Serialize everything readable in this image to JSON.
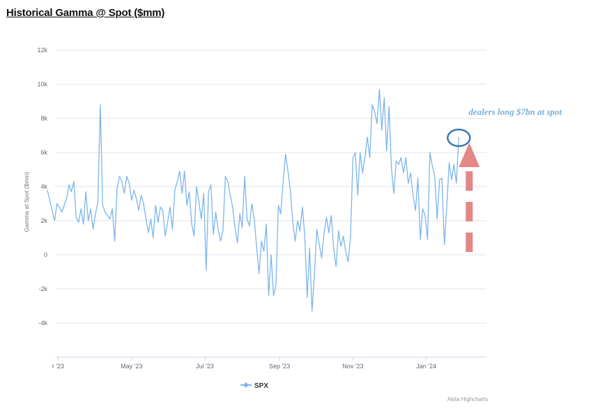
{
  "title": "Historical Gamma @ Spot ($mm)",
  "chart_data": {
    "type": "line",
    "title": "Historical Gamma @ Spot ($mm)",
    "ylabel": "Gamma at Spot ($mm)",
    "xlabel": "",
    "ylim": [
      -4000,
      12000
    ],
    "yticks": [
      {
        "value": 12000,
        "label": "12k"
      },
      {
        "value": 10000,
        "label": "10k"
      },
      {
        "value": 8000,
        "label": "8k"
      },
      {
        "value": 6000,
        "label": "6k"
      },
      {
        "value": 4000,
        "label": "4k"
      },
      {
        "value": 2000,
        "label": "2k"
      },
      {
        "value": 0,
        "label": "0"
      },
      {
        "value": -2000,
        "label": "-2k"
      },
      {
        "value": -4000,
        "label": "-4k"
      }
    ],
    "xlim": [
      "2023-02-27",
      "2024-02-20"
    ],
    "xticks": [
      {
        "date": "2023-03-01",
        "label": "r '23"
      },
      {
        "date": "2023-05-01",
        "label": "May '23"
      },
      {
        "date": "2023-07-01",
        "label": "Jul '23"
      },
      {
        "date": "2023-09-01",
        "label": "Sep '23"
      },
      {
        "date": "2023-11-01",
        "label": "Nov '23"
      },
      {
        "date": "2024-01-01",
        "label": "Jan '24"
      }
    ],
    "grid": true,
    "legend_position": "bottom-center",
    "series": [
      {
        "name": "SPX",
        "color": "#7cb5ec",
        "points": [
          [
            "2023-02-20",
            3800
          ],
          [
            "2023-02-22",
            3200
          ],
          [
            "2023-02-24",
            2600
          ],
          [
            "2023-02-26",
            2000
          ],
          [
            "2023-02-28",
            3000
          ],
          [
            "2023-03-02",
            2800
          ],
          [
            "2023-03-04",
            2500
          ],
          [
            "2023-03-06",
            2900
          ],
          [
            "2023-03-08",
            3300
          ],
          [
            "2023-03-10",
            4100
          ],
          [
            "2023-03-12",
            3700
          ],
          [
            "2023-03-14",
            4300
          ],
          [
            "2023-03-16",
            2200
          ],
          [
            "2023-03-18",
            1900
          ],
          [
            "2023-03-20",
            2700
          ],
          [
            "2023-03-22",
            1800
          ],
          [
            "2023-03-24",
            3700
          ],
          [
            "2023-03-26",
            2000
          ],
          [
            "2023-03-28",
            2700
          ],
          [
            "2023-03-30",
            1500
          ],
          [
            "2023-04-01",
            2400
          ],
          [
            "2023-04-03",
            3100
          ],
          [
            "2023-04-05",
            8800
          ],
          [
            "2023-04-07",
            2900
          ],
          [
            "2023-04-09",
            2500
          ],
          [
            "2023-04-11",
            2300
          ],
          [
            "2023-04-13",
            2100
          ],
          [
            "2023-04-15",
            2700
          ],
          [
            "2023-04-17",
            800
          ],
          [
            "2023-04-19",
            3900
          ],
          [
            "2023-04-21",
            4600
          ],
          [
            "2023-04-23",
            4300
          ],
          [
            "2023-04-25",
            3600
          ],
          [
            "2023-04-27",
            4600
          ],
          [
            "2023-04-29",
            4200
          ],
          [
            "2023-05-01",
            3200
          ],
          [
            "2023-05-03",
            3800
          ],
          [
            "2023-05-05",
            3300
          ],
          [
            "2023-05-07",
            2600
          ],
          [
            "2023-05-09",
            3500
          ],
          [
            "2023-05-11",
            3000
          ],
          [
            "2023-05-13",
            2100
          ],
          [
            "2023-05-15",
            1300
          ],
          [
            "2023-05-17",
            2100
          ],
          [
            "2023-05-19",
            1000
          ],
          [
            "2023-05-21",
            2900
          ],
          [
            "2023-05-23",
            1900
          ],
          [
            "2023-05-25",
            2800
          ],
          [
            "2023-05-27",
            2600
          ],
          [
            "2023-05-29",
            1100
          ],
          [
            "2023-05-31",
            1900
          ],
          [
            "2023-06-02",
            2800
          ],
          [
            "2023-06-04",
            1500
          ],
          [
            "2023-06-06",
            3800
          ],
          [
            "2023-06-08",
            4300
          ],
          [
            "2023-06-10",
            4900
          ],
          [
            "2023-06-12",
            3600
          ],
          [
            "2023-06-14",
            4900
          ],
          [
            "2023-06-16",
            2900
          ],
          [
            "2023-06-18",
            3700
          ],
          [
            "2023-06-20",
            1800
          ],
          [
            "2023-06-22",
            1100
          ],
          [
            "2023-06-24",
            4000
          ],
          [
            "2023-06-26",
            3100
          ],
          [
            "2023-06-28",
            2100
          ],
          [
            "2023-06-30",
            3600
          ],
          [
            "2023-07-02",
            -900
          ],
          [
            "2023-07-04",
            3700
          ],
          [
            "2023-07-06",
            4100
          ],
          [
            "2023-07-08",
            1200
          ],
          [
            "2023-07-10",
            2500
          ],
          [
            "2023-07-12",
            1500
          ],
          [
            "2023-07-14",
            800
          ],
          [
            "2023-07-16",
            1400
          ],
          [
            "2023-07-18",
            4600
          ],
          [
            "2023-07-20",
            4300
          ],
          [
            "2023-07-22",
            3500
          ],
          [
            "2023-07-24",
            2800
          ],
          [
            "2023-07-26",
            1600
          ],
          [
            "2023-07-28",
            700
          ],
          [
            "2023-07-30",
            2400
          ],
          [
            "2023-08-01",
            1600
          ],
          [
            "2023-08-03",
            4600
          ],
          [
            "2023-08-05",
            2100
          ],
          [
            "2023-08-07",
            1700
          ],
          [
            "2023-08-09",
            3000
          ],
          [
            "2023-08-11",
            2100
          ],
          [
            "2023-08-13",
            400
          ],
          [
            "2023-08-15",
            -1100
          ],
          [
            "2023-08-17",
            800
          ],
          [
            "2023-08-19",
            200
          ],
          [
            "2023-08-21",
            1800
          ],
          [
            "2023-08-23",
            -2400
          ],
          [
            "2023-08-25",
            0
          ],
          [
            "2023-08-27",
            -2400
          ],
          [
            "2023-08-29",
            -1800
          ],
          [
            "2023-08-31",
            2900
          ],
          [
            "2023-09-02",
            2400
          ],
          [
            "2023-09-04",
            4300
          ],
          [
            "2023-09-06",
            5900
          ],
          [
            "2023-09-08",
            4900
          ],
          [
            "2023-09-10",
            3800
          ],
          [
            "2023-09-12",
            1900
          ],
          [
            "2023-09-14",
            800
          ],
          [
            "2023-09-16",
            2000
          ],
          [
            "2023-09-18",
            1400
          ],
          [
            "2023-09-20",
            2800
          ],
          [
            "2023-09-22",
            1100
          ],
          [
            "2023-09-24",
            -2500
          ],
          [
            "2023-09-26",
            400
          ],
          [
            "2023-09-28",
            -3300
          ],
          [
            "2023-09-30",
            -1200
          ],
          [
            "2023-10-02",
            1500
          ],
          [
            "2023-10-04",
            600
          ],
          [
            "2023-10-06",
            -200
          ],
          [
            "2023-10-08",
            1300
          ],
          [
            "2023-10-10",
            2200
          ],
          [
            "2023-10-12",
            1300
          ],
          [
            "2023-10-14",
            2300
          ],
          [
            "2023-10-16",
            400
          ],
          [
            "2023-10-18",
            -700
          ],
          [
            "2023-10-20",
            1400
          ],
          [
            "2023-10-22",
            500
          ],
          [
            "2023-10-24",
            1100
          ],
          [
            "2023-10-26",
            200
          ],
          [
            "2023-10-28",
            -400
          ],
          [
            "2023-10-30",
            1000
          ],
          [
            "2023-11-01",
            5700
          ],
          [
            "2023-11-03",
            6000
          ],
          [
            "2023-11-05",
            3500
          ],
          [
            "2023-11-07",
            6000
          ],
          [
            "2023-11-09",
            4800
          ],
          [
            "2023-11-11",
            5700
          ],
          [
            "2023-11-13",
            6900
          ],
          [
            "2023-11-15",
            5700
          ],
          [
            "2023-11-17",
            8800
          ],
          [
            "2023-11-19",
            8400
          ],
          [
            "2023-11-21",
            7700
          ],
          [
            "2023-11-23",
            9700
          ],
          [
            "2023-11-25",
            7300
          ],
          [
            "2023-11-27",
            9200
          ],
          [
            "2023-11-29",
            6100
          ],
          [
            "2023-12-01",
            8700
          ],
          [
            "2023-12-03",
            5100
          ],
          [
            "2023-12-05",
            3600
          ],
          [
            "2023-12-07",
            5500
          ],
          [
            "2023-12-09",
            5300
          ],
          [
            "2023-12-11",
            5700
          ],
          [
            "2023-12-13",
            4800
          ],
          [
            "2023-12-15",
            5700
          ],
          [
            "2023-12-17",
            4200
          ],
          [
            "2023-12-19",
            4800
          ],
          [
            "2023-12-21",
            3500
          ],
          [
            "2023-12-23",
            2600
          ],
          [
            "2023-12-25",
            4500
          ],
          [
            "2023-12-27",
            900
          ],
          [
            "2023-12-29",
            2700
          ],
          [
            "2023-12-31",
            2300
          ],
          [
            "2024-01-02",
            900
          ],
          [
            "2024-01-04",
            6000
          ],
          [
            "2024-01-06",
            5200
          ],
          [
            "2024-01-08",
            4600
          ],
          [
            "2024-01-10",
            2100
          ],
          [
            "2024-01-12",
            4400
          ],
          [
            "2024-01-14",
            4500
          ],
          [
            "2024-01-16",
            600
          ],
          [
            "2024-01-18",
            2800
          ],
          [
            "2024-01-20",
            5400
          ],
          [
            "2024-01-22",
            4400
          ],
          [
            "2024-01-24",
            5300
          ],
          [
            "2024-01-26",
            4200
          ],
          [
            "2024-01-28",
            6900
          ]
        ]
      }
    ],
    "annotation": {
      "text": "dealers long $7bn at spot",
      "date": "2024-01-28",
      "value": 6900,
      "circle_color": "#3a78b8",
      "arrow_color": "#e07a7a"
    },
    "credit": "Akita Highcharts"
  }
}
